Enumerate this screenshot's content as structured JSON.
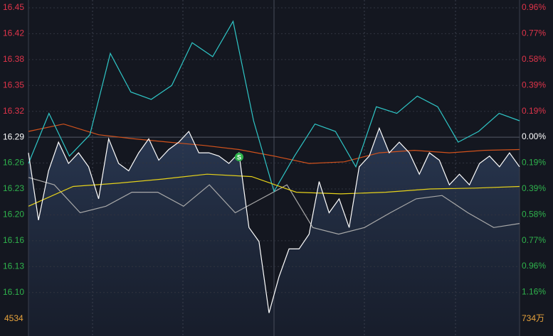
{
  "chart_data": {
    "type": "line",
    "ylim": [
      16.048,
      16.457
    ],
    "yticks": [
      {
        "value": 16.4475,
        "label": "16.45"
      },
      {
        "value": 16.416,
        "label": "16.42"
      },
      {
        "value": 16.3845,
        "label": "16.38"
      },
      {
        "value": 16.353,
        "label": "16.35"
      },
      {
        "value": 16.3215,
        "label": "16.32"
      },
      {
        "value": 16.29,
        "label": "16.29"
      },
      {
        "value": 16.2585,
        "label": "16.26"
      },
      {
        "value": 16.227,
        "label": "16.23"
      },
      {
        "value": 16.1955,
        "label": "16.20"
      },
      {
        "value": 16.164,
        "label": "16.16"
      },
      {
        "value": 16.1325,
        "label": "16.13"
      },
      {
        "value": 16.101,
        "label": "16.10"
      }
    ],
    "y2lim": [
      -1.481,
      1.021
    ],
    "y2ticks": [
      {
        "value": 0.9625,
        "label": "0.96%"
      },
      {
        "value": 0.77,
        "label": "0.77%"
      },
      {
        "value": 0.5775,
        "label": "0.58%"
      },
      {
        "value": 0.385,
        "label": "0.39%"
      },
      {
        "value": 0.1925,
        "label": "0.19%"
      },
      {
        "value": 0,
        "label": "0.00%"
      },
      {
        "value": -0.1925,
        "label": "0.19%"
      },
      {
        "value": -0.385,
        "label": "0.39%"
      },
      {
        "value": -0.5775,
        "label": "0.58%"
      },
      {
        "value": -0.77,
        "label": "0.77%"
      },
      {
        "value": -0.9625,
        "label": "0.96%"
      },
      {
        "value": -1.155,
        "label": "1.16%"
      }
    ],
    "grid": true,
    "up_color": "#e0344a",
    "down_color": "#2fb34c",
    "flat_color": "#ffffff",
    "volume_left": "4534",
    "volume_right": "734万",
    "volume_color": "#e8a33c",
    "marker": "S",
    "series": [
      {
        "color": "#a9a9a9",
        "values": [
          16.241,
          16.232,
          16.198,
          16.206,
          16.223,
          16.223,
          16.206,
          16.232,
          16.198,
          16.215,
          16.232,
          16.18,
          16.172,
          16.18,
          16.198,
          16.215,
          16.219,
          16.198,
          16.18,
          16.185
        ]
      },
      {
        "color": "#d2521c",
        "values": [
          16.297,
          16.306,
          16.293,
          16.288,
          16.284,
          16.28,
          16.275,
          16.267,
          16.258,
          16.26,
          16.271,
          16.274,
          16.271,
          16.274,
          16.275
        ]
      },
      {
        "color": "#2fc6c6",
        "values": [
          16.258,
          16.319,
          16.267,
          16.293,
          16.392,
          16.345,
          16.336,
          16.353,
          16.405,
          16.388,
          16.431,
          16.31,
          16.224,
          16.267,
          16.306,
          16.297,
          16.254,
          16.327,
          16.319,
          16.34,
          16.327,
          16.284,
          16.297,
          16.319,
          16.31
        ]
      },
      {
        "color": "#e6d21a",
        "values": [
          16.206,
          16.23,
          16.234,
          16.239,
          16.245,
          16.242,
          16.223,
          16.221,
          16.223,
          16.227,
          16.228,
          16.23
        ]
      },
      {
        "color": "#ffffff",
        "fill": true,
        "values": [
          16.271,
          16.189,
          16.249,
          16.284,
          16.258,
          16.271,
          16.254,
          16.215,
          16.288,
          16.258,
          16.249,
          16.271,
          16.288,
          16.262,
          16.275,
          16.284,
          16.297,
          16.271,
          16.271,
          16.267,
          16.258,
          16.271,
          16.18,
          16.163,
          16.076,
          16.12,
          16.154,
          16.154,
          16.172,
          16.236,
          16.198,
          16.215,
          16.18,
          16.254,
          16.267,
          16.301,
          16.271,
          16.284,
          16.271,
          16.245,
          16.271,
          16.262,
          16.232,
          16.245,
          16.232,
          16.258,
          16.267,
          16.254,
          16.271,
          16.254
        ]
      }
    ]
  }
}
